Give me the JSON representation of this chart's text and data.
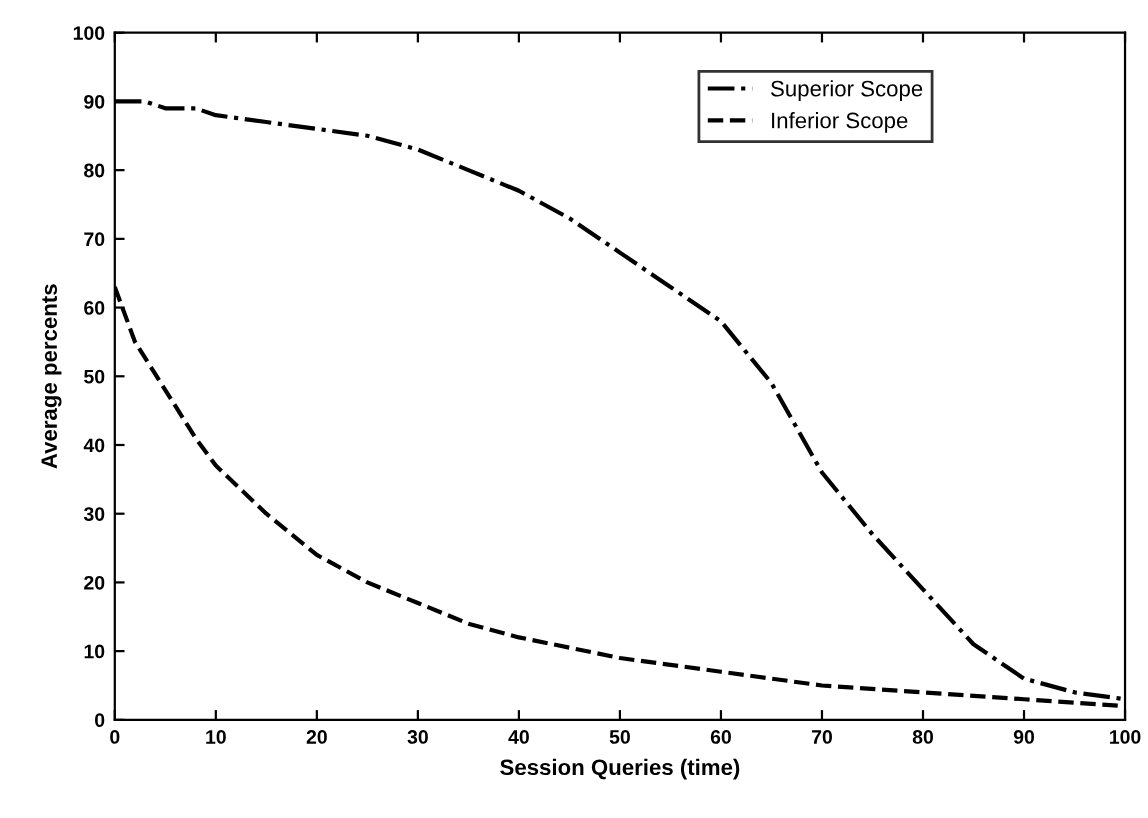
{
  "chart_data": {
    "type": "line",
    "xlabel": "Session Queries (time)",
    "ylabel": "Average percents",
    "xlim": [
      0,
      100
    ],
    "ylim": [
      0,
      100
    ],
    "xticks": [
      0,
      10,
      20,
      30,
      40,
      50,
      60,
      70,
      80,
      90,
      100
    ],
    "yticks": [
      0,
      10,
      20,
      30,
      40,
      50,
      60,
      70,
      80,
      90,
      100
    ],
    "grid": false,
    "legend": "top right",
    "marker": "none",
    "series": [
      {
        "name": "Superior Scope",
        "color": "#000000",
        "line_style": "dashdot",
        "x": [
          0,
          3,
          5,
          8,
          10,
          15,
          20,
          25,
          30,
          35,
          40,
          45,
          50,
          55,
          60,
          65,
          70,
          75,
          80,
          85,
          90,
          95,
          100
        ],
        "values": [
          90,
          90,
          89,
          89,
          88,
          87,
          86,
          85,
          83,
          80,
          77,
          73,
          68,
          63,
          58,
          49,
          36,
          27,
          19,
          11,
          6,
          4,
          3
        ]
      },
      {
        "name": "Inferior Scope",
        "color": "#000000",
        "line_style": "dashed",
        "x": [
          0,
          2,
          5,
          8,
          10,
          15,
          20,
          25,
          30,
          35,
          40,
          50,
          60,
          70,
          80,
          90,
          100
        ],
        "values": [
          63,
          55,
          48,
          41,
          37,
          30,
          24,
          20,
          17,
          14,
          12,
          9,
          7,
          5,
          4,
          3,
          2
        ]
      }
    ]
  }
}
